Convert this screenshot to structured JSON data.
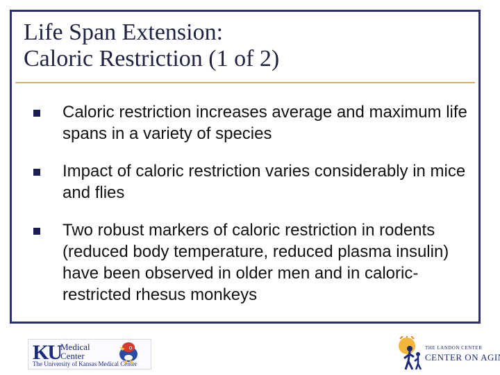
{
  "slide": {
    "title_lines": [
      "Life Span Extension:",
      "Caloric Restriction (1 of 2)"
    ],
    "bullets": [
      "Caloric restriction increases average and maximum life spans in a variety of species",
      "Impact of caloric restriction varies considerably in mice and flies",
      "Two robust markers of caloric restriction in rodents (reduced body temperature, reduced plasma insulin) have been observed in older men and in caloric-restricted rhesus monkeys"
    ]
  },
  "footer": {
    "ku_logo": {
      "mark": "KU",
      "medical": "Medical",
      "center": "Center",
      "university": "The University of Kansas Medical Center"
    },
    "jayhawk_icon": "jayhawk-mascot-icon",
    "aging_logo": {
      "small": "THE LANDON CENTER",
      "big": "CENTER ON AGING",
      "icon": "walking-figures-icon"
    }
  },
  "colors": {
    "frame": "#2b2f73",
    "rule": "#e3b04b",
    "bullet": "#1b1d55"
  }
}
